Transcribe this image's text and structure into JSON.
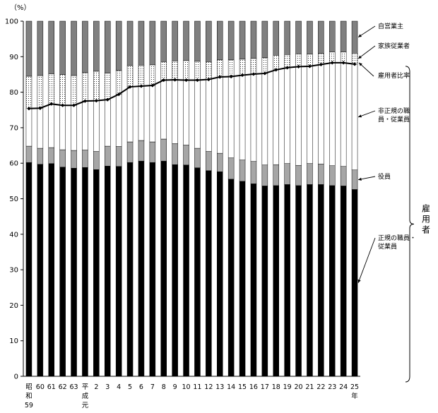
{
  "chart_data": {
    "type": "bar",
    "stacked": true,
    "unit_label": "（%）",
    "ylim": [
      0,
      100
    ],
    "yticks": [
      0,
      10,
      20,
      30,
      40,
      50,
      60,
      70,
      80,
      90,
      100
    ],
    "categories": [
      [
        "昭",
        "和",
        "59"
      ],
      [
        "60"
      ],
      [
        "61"
      ],
      [
        "62"
      ],
      [
        "63"
      ],
      [
        "平",
        "成",
        "元"
      ],
      [
        "2"
      ],
      [
        "3"
      ],
      [
        "4"
      ],
      [
        "5"
      ],
      [
        "6"
      ],
      [
        "7"
      ],
      [
        "8"
      ],
      [
        "9"
      ],
      [
        "10"
      ],
      [
        "11"
      ],
      [
        "12"
      ],
      [
        "13"
      ],
      [
        "14"
      ],
      [
        "15"
      ],
      [
        "16"
      ],
      [
        "17"
      ],
      [
        "18"
      ],
      [
        "19"
      ],
      [
        "20"
      ],
      [
        "21"
      ],
      [
        "22"
      ],
      [
        "23"
      ],
      [
        "24"
      ],
      [
        "25",
        "年"
      ]
    ],
    "series": [
      {
        "name": "正規の職員・従業員",
        "color": "#000000",
        "values": [
          60.2,
          59.7,
          59.9,
          58.9,
          58.6,
          58.8,
          58.2,
          59.2,
          59.1,
          60.2,
          60.6,
          60.2,
          60.6,
          59.6,
          59.5,
          58.7,
          57.9,
          57.6,
          55.5,
          54.9,
          54.2,
          53.6,
          53.7,
          54.0,
          53.7,
          54.0,
          54.0,
          53.7,
          53.6,
          52.6
        ]
      },
      {
        "name": "役員",
        "color": "#a6a6a6",
        "values": [
          4.6,
          4.5,
          4.5,
          4.9,
          5.0,
          4.9,
          5.1,
          5.6,
          5.6,
          5.8,
          5.8,
          5.8,
          6.2,
          5.9,
          5.6,
          5.5,
          5.4,
          5.2,
          6.0,
          6.0,
          6.3,
          5.9,
          5.9,
          5.9,
          5.7,
          5.9,
          5.8,
          5.6,
          5.5,
          5.5
        ]
      },
      {
        "name": "非正規の職員・従業員",
        "color": "#ffffff",
        "values": [
          10.6,
          11.3,
          12.3,
          12.5,
          12.7,
          13.8,
          14.3,
          13.1,
          14.7,
          15.5,
          15.3,
          15.9,
          16.6,
          18.0,
          18.3,
          19.2,
          20.3,
          21.5,
          22.9,
          23.9,
          24.6,
          25.8,
          26.7,
          27.0,
          27.8,
          27.4,
          28.0,
          29.0,
          29.2,
          29.8
        ]
      },
      {
        "name": "家族従業者",
        "color": "#ffffff",
        "pattern": "dots",
        "values": [
          9.1,
          9.2,
          8.5,
          8.7,
          8.4,
          8.0,
          8.3,
          7.5,
          6.7,
          6.0,
          5.9,
          5.8,
          5.2,
          5.3,
          5.5,
          5.3,
          5.0,
          4.8,
          4.7,
          4.5,
          4.4,
          4.4,
          4.1,
          3.7,
          3.6,
          3.4,
          3.1,
          3.0,
          3.0,
          3.1
        ]
      },
      {
        "name": "自営業主",
        "color": "#808080",
        "values": [
          15.5,
          15.3,
          14.8,
          15.0,
          15.3,
          14.5,
          14.1,
          14.6,
          13.9,
          12.5,
          12.4,
          12.3,
          11.4,
          11.2,
          11.1,
          11.3,
          11.4,
          10.9,
          10.9,
          10.7,
          10.5,
          10.3,
          9.6,
          9.4,
          9.2,
          9.3,
          9.1,
          8.7,
          8.7,
          9.0
        ]
      }
    ],
    "line": {
      "name": "雇用者比率",
      "values": [
        75.4,
        75.5,
        76.7,
        76.3,
        76.3,
        77.5,
        77.6,
        77.9,
        79.4,
        81.5,
        81.7,
        81.9,
        83.4,
        83.5,
        83.4,
        83.4,
        83.6,
        84.3,
        84.4,
        84.8,
        85.1,
        85.3,
        86.3,
        86.9,
        87.2,
        87.3,
        87.8,
        88.3,
        88.3,
        87.9
      ]
    },
    "annotations": [
      {
        "series": "自営業主",
        "lines": [
          "自営業主"
        ]
      },
      {
        "series": "家族従業者",
        "lines": [
          "家族従業者"
        ]
      },
      {
        "series": "雇用者比率",
        "lines": [
          "雇用者比率"
        ]
      },
      {
        "series": "非正規の職員・従業員",
        "lines": [
          "非正規の職",
          "員・従業員"
        ]
      },
      {
        "series": "役員",
        "lines": [
          "役員"
        ]
      },
      {
        "series": "正規の職員・従業員",
        "lines": [
          "正規の職員・",
          "従業員"
        ]
      }
    ],
    "bracket_label": "雇用者",
    "grid": false,
    "legend": "annotations-right"
  }
}
